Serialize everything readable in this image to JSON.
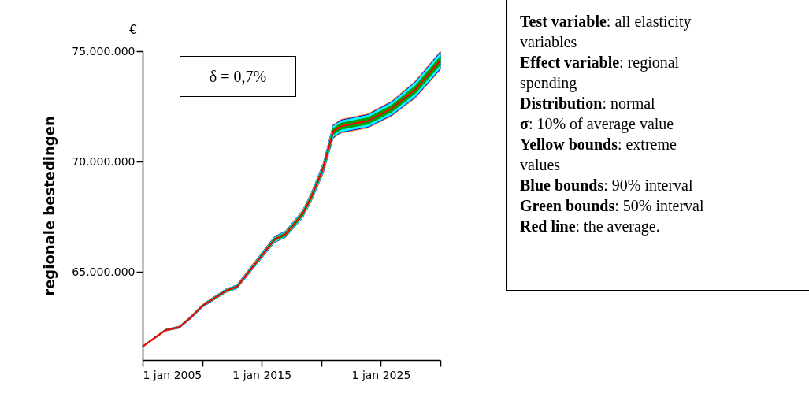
{
  "chart_data": {
    "type": "line",
    "ylabel": "regionale bestedingen",
    "x": [
      "2005-01",
      "2006-12",
      "2008-02",
      "2009-02",
      "2010-02",
      "2012-01",
      "2012-12",
      "2014-08",
      "2016-02",
      "2017-01",
      "2018-06",
      "2019-03",
      "2020-03",
      "2021-01",
      "2021-09",
      "2023-12",
      "2025-12",
      "2027-12",
      "2030-01"
    ],
    "xlim": [
      "2005-01-01",
      "2030-01-01"
    ],
    "xticks": [
      {
        "value": "2005-01-01",
        "label": "1 jan 2005"
      },
      {
        "value": "2010-01-01",
        "label": null
      },
      {
        "value": "2015-01-01",
        "label": "1 jan 2015"
      },
      {
        "value": "2020-01-01",
        "label": null
      },
      {
        "value": "2025-01-01",
        "label": "1 jan 2025"
      },
      {
        "value": "2030-01-01",
        "label": null
      }
    ],
    "ylim": [
      61000000,
      75000000
    ],
    "yticks": [
      {
        "value": 65000000,
        "label": "65.000.000"
      },
      {
        "value": 70000000,
        "label": "70.000.000"
      },
      {
        "value": 75000000,
        "label": "75.000.000"
      }
    ],
    "series": [
      {
        "color": "#ff7f27",
        "values": [
          null,
          null,
          null,
          null,
          null,
          null,
          null,
          null,
          null,
          null,
          null,
          null,
          null,
          null,
          null,
          null,
          null,
          null,
          null
        ],
        "lower": [
          61580000,
          62310000,
          62440000,
          62890000,
          63410000,
          64060000,
          64230000,
          65330000,
          66330000,
          66550000,
          67430000,
          68180000,
          69460000,
          71050000,
          71290000,
          71520000,
          72060000,
          72880000,
          74150000
        ],
        "upper": [
          61640000,
          62390000,
          62540000,
          63010000,
          63550000,
          64220000,
          64410000,
          65570000,
          66610000,
          66850000,
          67770000,
          68580000,
          69920000,
          71670000,
          71910000,
          72160000,
          72740000,
          73660000,
          75000000
        ]
      },
      {
        "color": "#0000ff",
        "values": [
          null,
          null,
          null,
          null,
          null,
          null,
          null,
          null,
          null,
          null,
          null,
          null,
          null,
          null,
          null,
          null,
          null,
          null,
          null
        ],
        "lower": [
          61590000,
          62320000,
          62450000,
          62900000,
          63420000,
          64070000,
          64240000,
          65350000,
          66350000,
          66570000,
          67450000,
          68210000,
          69490000,
          71090000,
          71330000,
          71560000,
          72100000,
          72930000,
          74200000
        ],
        "upper": [
          61630000,
          62380000,
          62530000,
          63000000,
          63540000,
          64210000,
          64400000,
          65550000,
          66590000,
          66830000,
          67750000,
          68550000,
          69890000,
          71630000,
          71870000,
          72120000,
          72700000,
          73610000,
          74960000
        ]
      },
      {
        "color": "#00ffff",
        "values": [
          null,
          null,
          null,
          null,
          null,
          null,
          null,
          null,
          null,
          null,
          null,
          null,
          null,
          null,
          null,
          null,
          null,
          null,
          null
        ],
        "lower": [
          61592000,
          62325000,
          62455000,
          62905000,
          63425000,
          64075000,
          64245000,
          65360000,
          66365000,
          66585000,
          67465000,
          68225000,
          69510000,
          71120000,
          71360000,
          71590000,
          72130000,
          72960000,
          74240000
        ],
        "upper": [
          61628000,
          62375000,
          62525000,
          62995000,
          63535000,
          64205000,
          64395000,
          65540000,
          66575000,
          66815000,
          67735000,
          68535000,
          69870000,
          71600000,
          71840000,
          72090000,
          72670000,
          73580000,
          74920000
        ]
      },
      {
        "color": "#00a000",
        "values": [
          null,
          null,
          null,
          null,
          null,
          null,
          null,
          null,
          null,
          null,
          null,
          null,
          null,
          null,
          null,
          null,
          null,
          null,
          null
        ],
        "lower": [
          61600000,
          62330000,
          62470000,
          62920000,
          63450000,
          64100000,
          64280000,
          65400000,
          66410000,
          66630000,
          67520000,
          68290000,
          69590000,
          71220000,
          71460000,
          71700000,
          72250000,
          73100000,
          74390000
        ],
        "upper": [
          61620000,
          62370000,
          62510000,
          62980000,
          63510000,
          64180000,
          64360000,
          65500000,
          66530000,
          66770000,
          67680000,
          68470000,
          69790000,
          71500000,
          71740000,
          71980000,
          72550000,
          73440000,
          74770000
        ]
      },
      {
        "color": "#ff0000",
        "values": [
          61610000,
          62350000,
          62490000,
          62950000,
          63480000,
          64140000,
          64320000,
          65450000,
          66470000,
          66700000,
          67600000,
          68380000,
          69690000,
          71360000,
          71600000,
          71840000,
          72400000,
          73270000,
          74580000
        ]
      }
    ],
    "annotations": [
      "€",
      "δ = 0,7%",
      "Test variable: all elasticity variables",
      "Effect variable: regional spending",
      "Distribution: normal",
      "σ: 10% of average value",
      "Yellow bounds: extreme values",
      "Blue bounds: 90% interval",
      "Green bounds: 50% interval",
      "Red line: the average."
    ]
  }
}
